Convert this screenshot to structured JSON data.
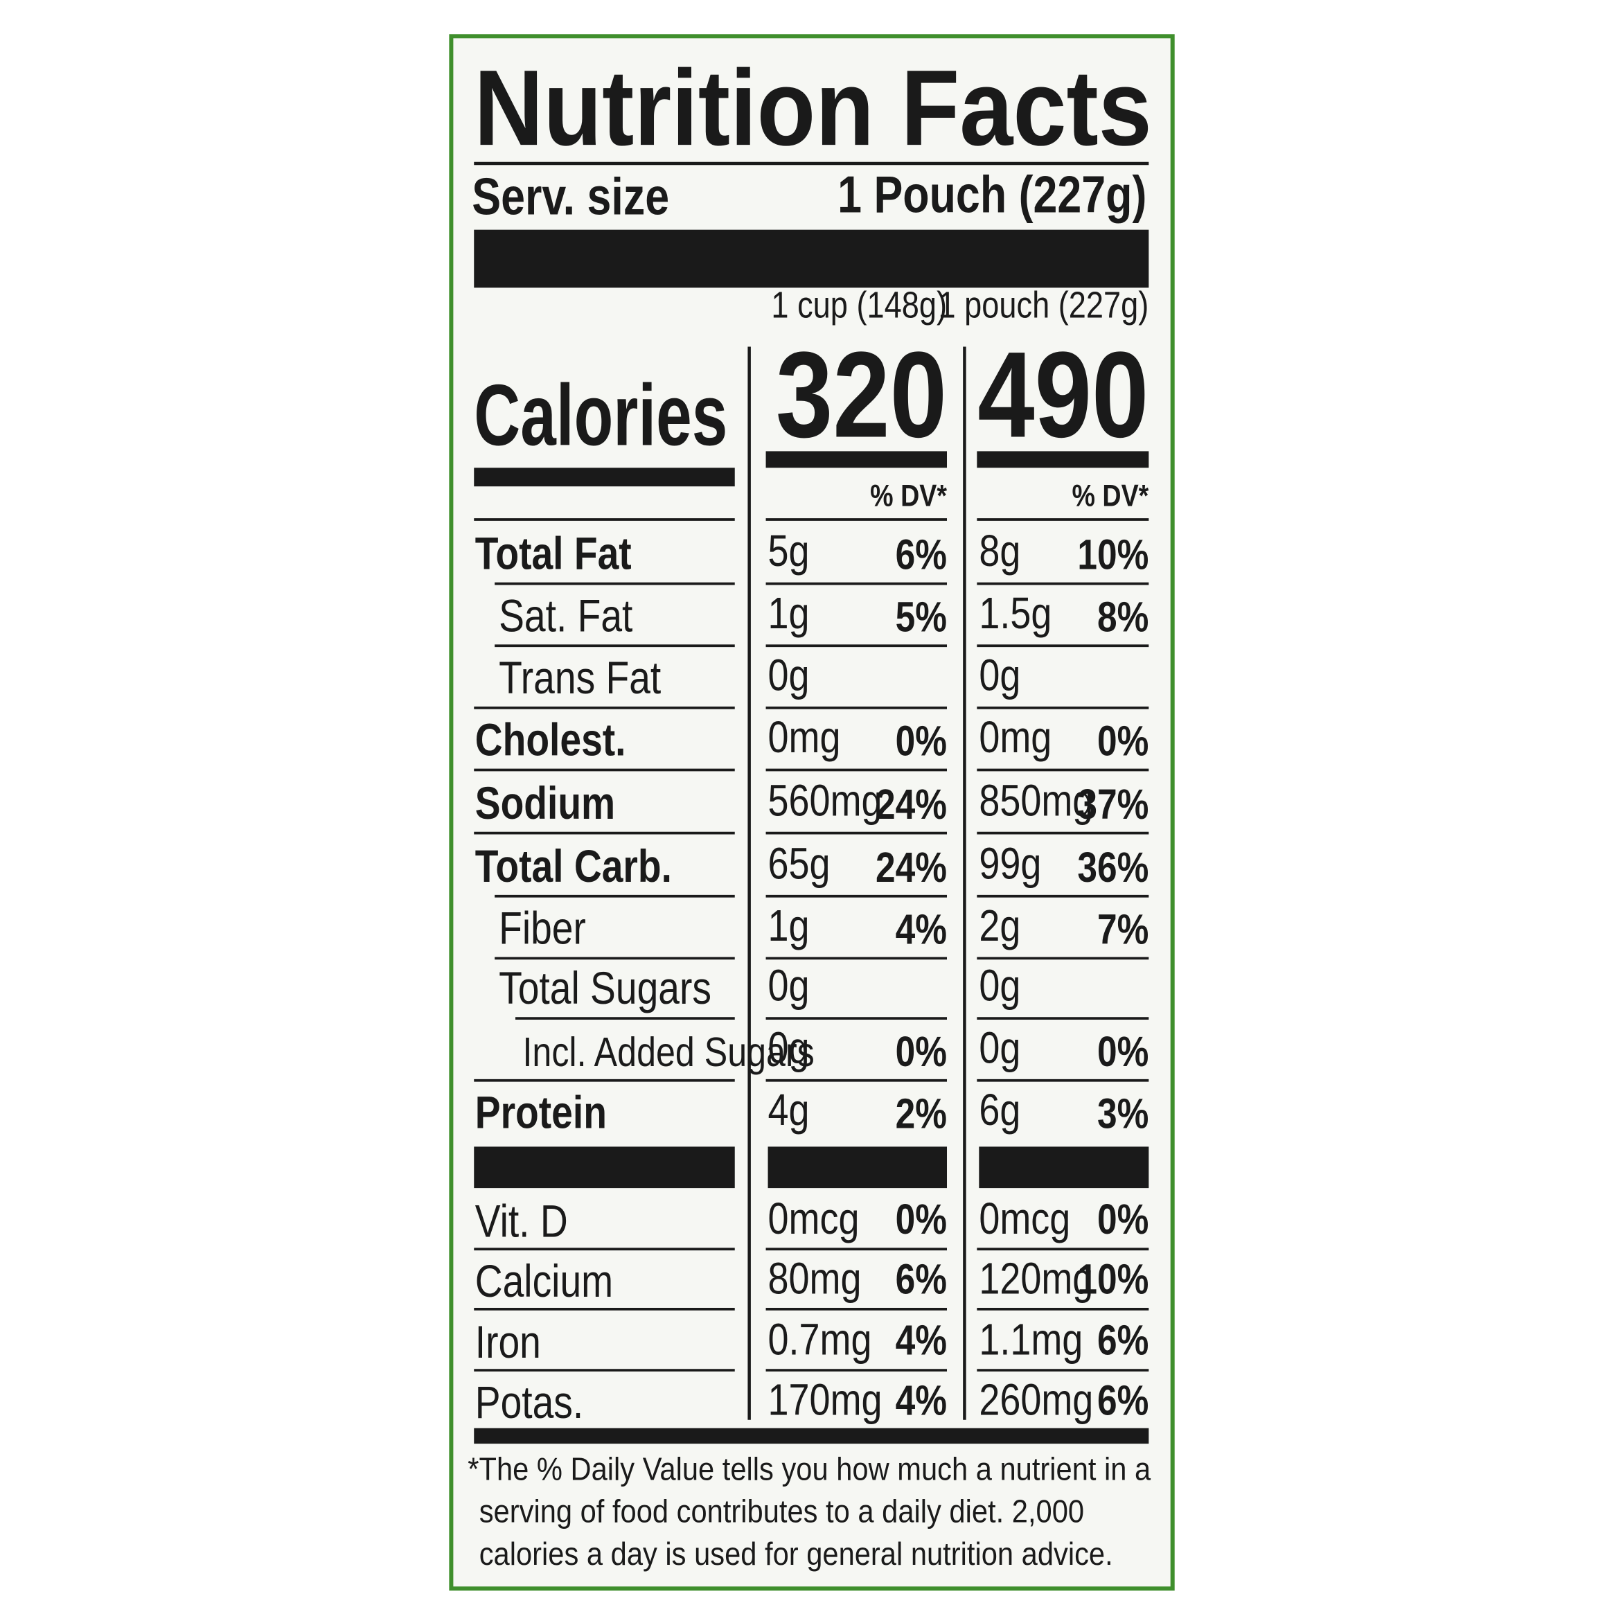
{
  "header": {
    "title": "Nutrition Facts",
    "serving_label": "Serv. size",
    "serving_value": "1 Pouch (227g)"
  },
  "columns": [
    "1 cup (148g)",
    "1 pouch (227g)"
  ],
  "calories": {
    "label": "Calories",
    "values": [
      "320",
      "490"
    ]
  },
  "dv_header": "% DV*",
  "rows": [
    {
      "name": "Total Fat",
      "bold": true,
      "indent": 0,
      "cells": [
        [
          "5g",
          "6%"
        ],
        [
          "8g",
          "10%"
        ]
      ]
    },
    {
      "name": "Sat. Fat",
      "bold": false,
      "indent": 1,
      "cells": [
        [
          "1g",
          "5%"
        ],
        [
          "1.5g",
          "8%"
        ]
      ]
    },
    {
      "name": "Trans Fat",
      "bold": false,
      "indent": 1,
      "cells": [
        [
          "0g"
        ],
        [
          "0g"
        ]
      ]
    },
    {
      "name": "Cholest.",
      "bold": true,
      "indent": 0,
      "cells": [
        [
          "0mg",
          "0%"
        ],
        [
          "0mg",
          "0%"
        ]
      ]
    },
    {
      "name": "Sodium",
      "bold": true,
      "indent": 0,
      "cells": [
        [
          "560mg",
          "24%"
        ],
        [
          "850mg",
          "37%"
        ]
      ]
    },
    {
      "name": "Total Carb.",
      "bold": true,
      "indent": 0,
      "cells": [
        [
          "65g",
          "24%"
        ],
        [
          "99g",
          "36%"
        ]
      ]
    },
    {
      "name": "Fiber",
      "bold": false,
      "indent": 1,
      "cells": [
        [
          "1g",
          "4%"
        ],
        [
          "2g",
          "7%"
        ]
      ]
    },
    {
      "name": "Total Sugars",
      "bold": false,
      "indent": 1,
      "cells": [
        [
          "0g"
        ],
        [
          "0g"
        ]
      ]
    },
    {
      "name": "Incl. Added Sugars",
      "bold": false,
      "indent": 2,
      "cells": [
        [
          "0g",
          "0%"
        ],
        [
          "0g",
          "0%"
        ]
      ]
    },
    {
      "name": "Protein",
      "bold": true,
      "indent": 0,
      "cells": [
        [
          "4g",
          "2%"
        ],
        [
          "6g",
          "3%"
        ]
      ]
    }
  ],
  "vitamins": [
    {
      "name": "Vit. D",
      "cells": [
        [
          "0mcg",
          "0%"
        ],
        [
          "0mcg",
          "0%"
        ]
      ]
    },
    {
      "name": "Calcium",
      "cells": [
        [
          "80mg",
          "6%"
        ],
        [
          "120mg",
          "10%"
        ]
      ]
    },
    {
      "name": "Iron",
      "cells": [
        [
          "0.7mg",
          "4%"
        ],
        [
          "1.1mg",
          "6%"
        ]
      ]
    },
    {
      "name": "Potas.",
      "cells": [
        [
          "170mg",
          "4%"
        ],
        [
          "260mg",
          "6%"
        ]
      ]
    }
  ],
  "footnote": [
    "*The % Daily Value tells you how much a nutrient in a",
    "serving of food contributes to a daily diet. 2,000",
    "calories a day is used for general nutrition advice."
  ]
}
